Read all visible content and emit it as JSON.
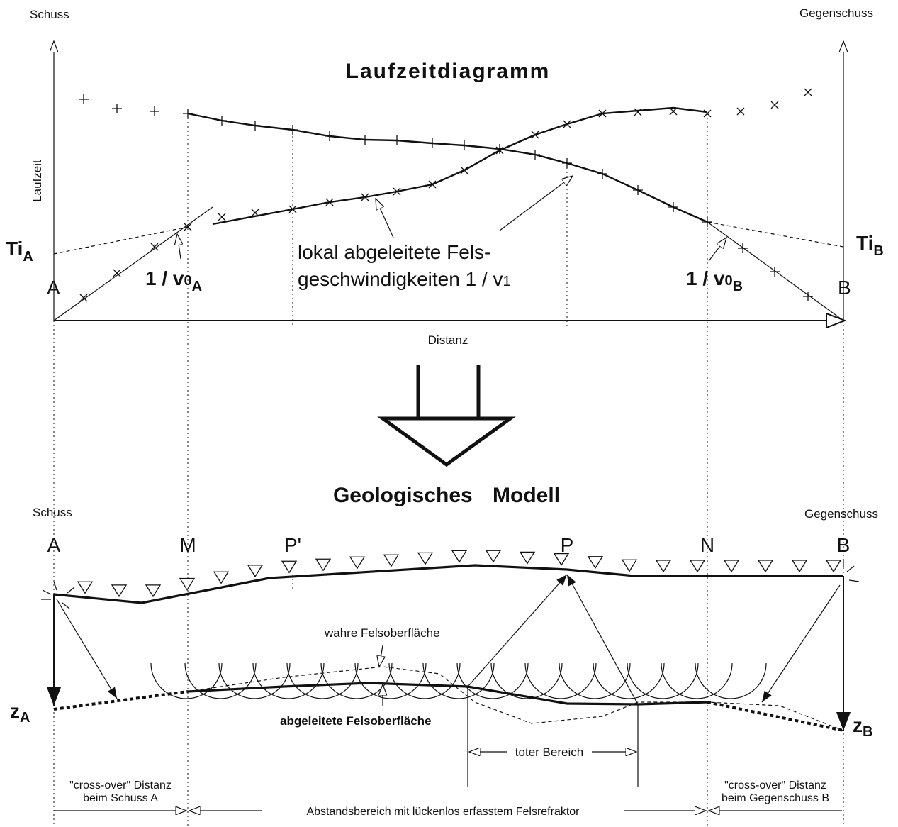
{
  "travel_time_diagram": {
    "shot_label": "Schuss",
    "counter_shot_label": "Gegenschuss",
    "title": "Laufzeitdiagramm",
    "y_axis_label": "Laufzeit",
    "x_axis_label": "Distanz",
    "intercept_a": {
      "symbol": "Ti",
      "subscript": "A"
    },
    "intercept_b": {
      "symbol": "Ti",
      "subscript": "B"
    },
    "point_a": "A",
    "point_b": "B",
    "slope_a": {
      "symbol": "1 / v",
      "index": "0",
      "subscript": "A"
    },
    "slope_b": {
      "symbol": "1 / v",
      "index": "0",
      "subscript": "B"
    },
    "annotation": {
      "line_1": "lokal abgeleitete Fels-",
      "line_2": "geschwindigkeiten 1 / v",
      "index": "1"
    }
  },
  "geological_model": {
    "title": "Geologisches Modell",
    "shot_label": "Schuss",
    "counter_shot_label": "Gegenschuss",
    "points": [
      "A",
      "M",
      "P'",
      "P",
      "N",
      "B"
    ],
    "true_surface": "wahre Felsoberfläche",
    "derived_surface": "abgeleitete Felsoberfläche",
    "depth_a": {
      "symbol": "z",
      "subscript": "A"
    },
    "depth_b": {
      "symbol": "z",
      "subscript": "B"
    },
    "dead_zone": "toter Bereich",
    "crossover_a": [
      "\"cross-over\" Distanz",
      "beim Schuss A"
    ],
    "range": "Abstandsbereich mit lückenlos erfasstem Felsrefraktor",
    "crossover_b": [
      "\"cross-over\" Distanz",
      "beim Gegenschuss B"
    ]
  }
}
